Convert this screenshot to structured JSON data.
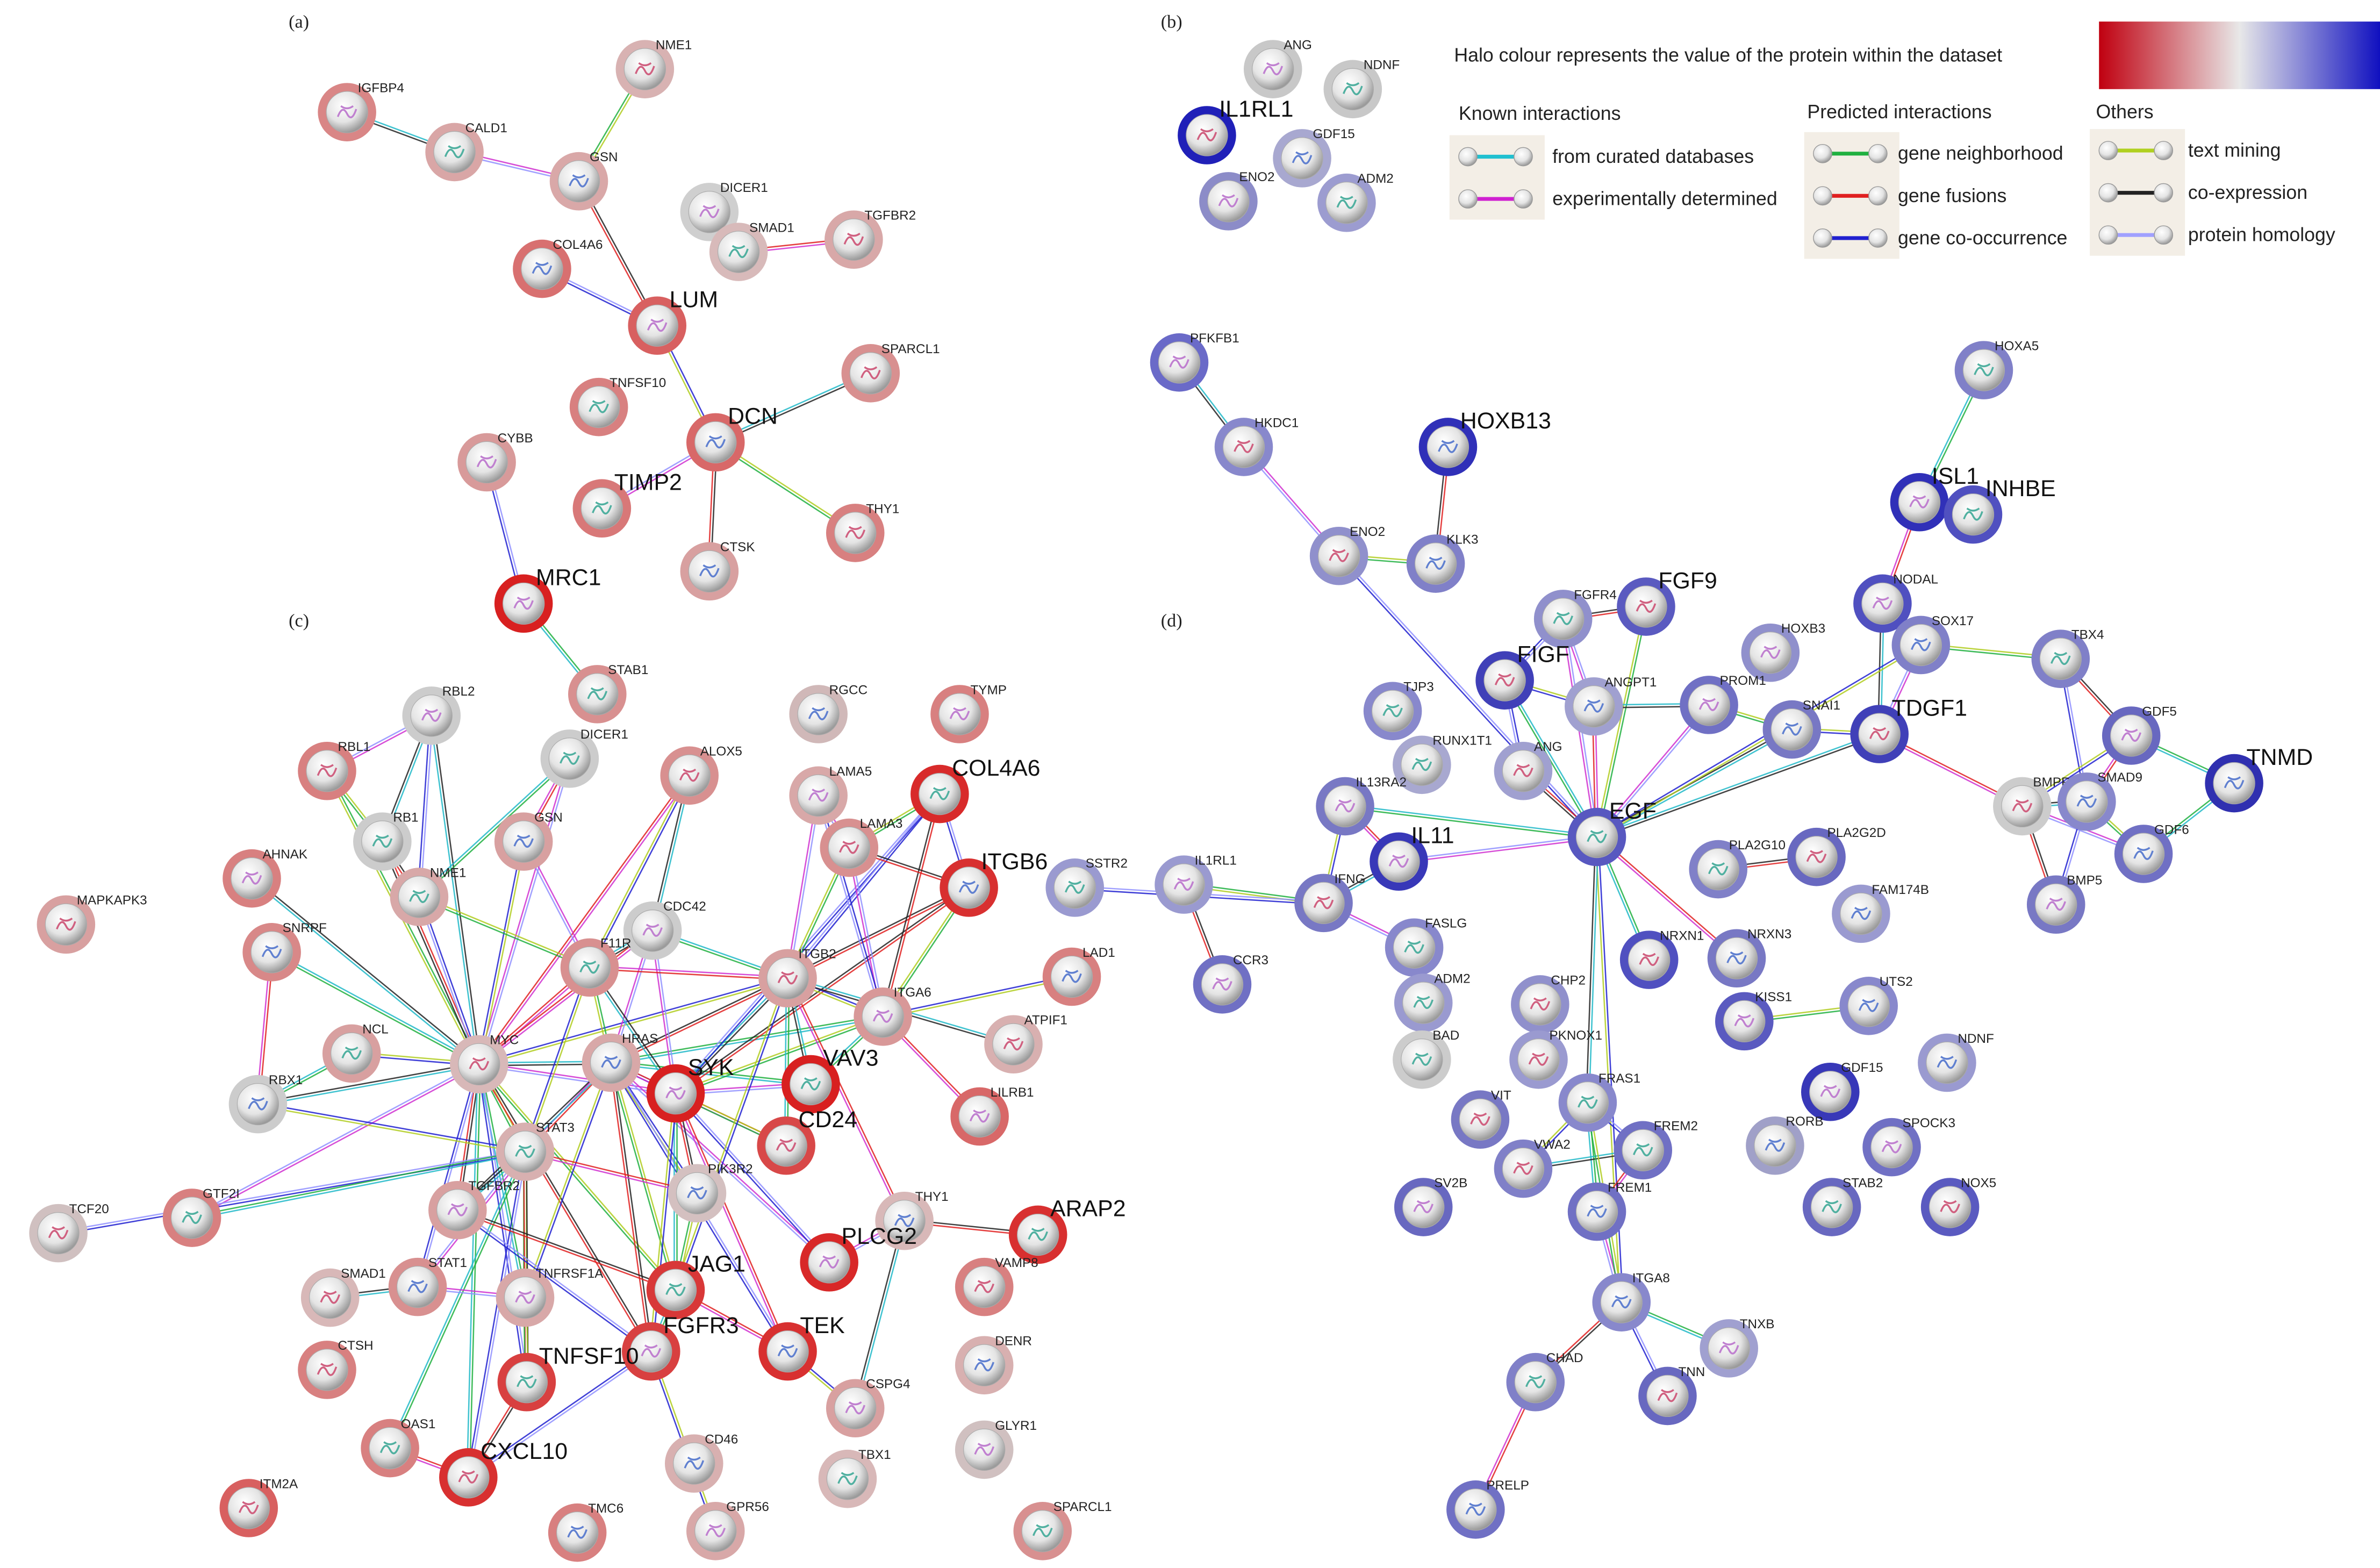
{
  "panels": [
    {
      "label": "(a)",
      "nodes": [
        {
          "label": "IGFBP4",
          "halo": "#d98686"
        },
        {
          "label": "CALD1",
          "halo": "#d9a6a6"
        },
        {
          "label": "NME1",
          "halo": "#d8b2b2"
        },
        {
          "label": "GSN",
          "halo": "#d9a8a8"
        },
        {
          "label": "DICER1",
          "halo": "#cfcfcf"
        },
        {
          "label": "SMAD1",
          "halo": "#d8baba"
        },
        {
          "label": "TGFBR2",
          "halo": "#d8a8a8"
        },
        {
          "label": "COL4A6",
          "halo": "#d87070"
        },
        {
          "label": "LUM",
          "halo": "#d86060"
        },
        {
          "label": "TNFSF10",
          "halo": "#d88080"
        },
        {
          "label": "SPARCL1",
          "halo": "#d89090"
        },
        {
          "label": "DCN",
          "halo": "#d86868"
        },
        {
          "label": "CYBB",
          "halo": "#d89a9a"
        },
        {
          "label": "TIMP2",
          "halo": "#d87878"
        },
        {
          "label": "THY1",
          "halo": "#d88080"
        },
        {
          "label": "CTSK",
          "halo": "#d8a0a0"
        },
        {
          "label": "MRC1",
          "halo": "#d82020"
        },
        {
          "label": "STAB1",
          "halo": "#d89090"
        }
      ]
    },
    {
      "label": "(b)",
      "nodes": [
        {
          "label": "ANG",
          "halo": "#c8c8c8"
        },
        {
          "label": "NDNF",
          "halo": "#c8c8c8"
        },
        {
          "label": "IL1RL1",
          "halo": "#2020b8"
        },
        {
          "label": "GDF15",
          "halo": "#a8a8d0"
        },
        {
          "label": "ENO2",
          "halo": "#8c8cc8"
        },
        {
          "label": "ADM2",
          "halo": "#9c9cd0"
        }
      ]
    },
    {
      "label": "(c)",
      "nodes": [
        {
          "label": "RBL2",
          "halo": "#cccccc"
        },
        {
          "label": "DICER1",
          "halo": "#cccccc"
        },
        {
          "label": "ALOX5",
          "halo": "#d89090"
        },
        {
          "label": "RGCC",
          "halo": "#d0b8b8"
        },
        {
          "label": "TYMP",
          "halo": "#d88080"
        },
        {
          "label": "COL4A6",
          "halo": "#d82a2a"
        },
        {
          "label": "RBL1",
          "halo": "#d88080"
        },
        {
          "label": "GSN",
          "halo": "#d8a0a0"
        },
        {
          "label": "LAMA5",
          "halo": "#d8a8a8"
        },
        {
          "label": "RB1",
          "halo": "#cccccc"
        },
        {
          "label": "LAMA3",
          "halo": "#d89090"
        },
        {
          "label": "ITGB6",
          "halo": "#d83030"
        },
        {
          "label": "AHNAK",
          "halo": "#d88080"
        },
        {
          "label": "NME1",
          "halo": "#d8a8a8"
        },
        {
          "label": "MAPKAPK3",
          "halo": "#d8a0a0"
        },
        {
          "label": "SNRPF",
          "halo": "#d88888"
        },
        {
          "label": "CDC42",
          "halo": "#cccccc"
        },
        {
          "label": "F11R",
          "halo": "#d89090"
        },
        {
          "label": "ITGB2",
          "halo": "#d8a0a0"
        },
        {
          "label": "LAD1",
          "halo": "#d88080"
        },
        {
          "label": "ITGA6",
          "halo": "#d89898"
        },
        {
          "label": "NCL",
          "halo": "#d8a0a0"
        },
        {
          "label": "MYC",
          "halo": "#d8b8b8"
        },
        {
          "label": "HRAS",
          "halo": "#d8a8a8"
        },
        {
          "label": "SYK",
          "halo": "#d82020"
        },
        {
          "label": "VAV3",
          "halo": "#d82020"
        },
        {
          "label": "ATPIF1",
          "halo": "#d8b0b0"
        },
        {
          "label": "RBX1",
          "halo": "#cccccc"
        },
        {
          "label": "LILRB1",
          "halo": "#d86868"
        },
        {
          "label": "STAT3",
          "halo": "#d8b0b0"
        },
        {
          "label": "CD24",
          "halo": "#d84848"
        },
        {
          "label": "PIK3R2",
          "halo": "#d4c0c0"
        },
        {
          "label": "TGFBR2",
          "halo": "#d8a0a0"
        },
        {
          "label": "GTF2I",
          "halo": "#d88080"
        },
        {
          "label": "TCF20",
          "halo": "#d0c0c0"
        },
        {
          "label": "THY1",
          "halo": "#d8b8b8"
        },
        {
          "label": "PLCG2",
          "halo": "#d82828"
        },
        {
          "label": "ARAP2",
          "halo": "#d83030"
        },
        {
          "label": "SMAD1",
          "halo": "#d8b8b8"
        },
        {
          "label": "STAT1",
          "halo": "#d89090"
        },
        {
          "label": "TNFRSF1A",
          "halo": "#d8a8a8"
        },
        {
          "label": "JAG1",
          "halo": "#d83838"
        },
        {
          "label": "VAMP8",
          "halo": "#d88080"
        },
        {
          "label": "TEK",
          "halo": "#d83030"
        },
        {
          "label": "FGFR3",
          "halo": "#d84040"
        },
        {
          "label": "TNFSF10",
          "halo": "#d84040"
        },
        {
          "label": "CTSH",
          "halo": "#d88080"
        },
        {
          "label": "DENR",
          "halo": "#d8b0b0"
        },
        {
          "label": "CSPG4",
          "halo": "#d8a0a0"
        },
        {
          "label": "OAS1",
          "halo": "#d88080"
        },
        {
          "label": "CXCL10",
          "halo": "#d83030"
        },
        {
          "label": "CD46",
          "halo": "#d8b0b0"
        },
        {
          "label": "GLYR1",
          "halo": "#d0c0c0"
        },
        {
          "label": "TBX1",
          "halo": "#d8b8b8"
        },
        {
          "label": "ITM2A",
          "halo": "#d86060"
        },
        {
          "label": "TMC6",
          "halo": "#d88080"
        },
        {
          "label": "GPR56",
          "halo": "#d8a8a8"
        },
        {
          "label": "SPARCL1",
          "halo": "#d89090"
        }
      ]
    },
    {
      "label": "(d)",
      "nodes": [
        {
          "label": "PFKFB1",
          "halo": "#6a6ac8"
        },
        {
          "label": "HOXA5",
          "halo": "#8080c8"
        },
        {
          "label": "HKDC1",
          "halo": "#8888cc"
        },
        {
          "label": "HOXB13",
          "halo": "#3030b8"
        },
        {
          "label": "ISL1",
          "halo": "#3030b8"
        },
        {
          "label": "INHBE",
          "halo": "#5050c0"
        },
        {
          "label": "ENO2",
          "halo": "#9090cc"
        },
        {
          "label": "KLK3",
          "halo": "#8080c8"
        },
        {
          "label": "NODAL",
          "halo": "#5050c0"
        },
        {
          "label": "FGFR4",
          "halo": "#9090cc"
        },
        {
          "label": "FGF9",
          "halo": "#5a5ac0"
        },
        {
          "label": "SOX17",
          "halo": "#8080c8"
        },
        {
          "label": "HOXB3",
          "halo": "#9090cc"
        },
        {
          "label": "TBX4",
          "halo": "#8080c8"
        },
        {
          "label": "FIGF",
          "halo": "#4040b8"
        },
        {
          "label": "ANGPT1",
          "halo": "#a0a0d0"
        },
        {
          "label": "PROM1",
          "halo": "#7070c4"
        },
        {
          "label": "TJP3",
          "halo": "#8888cc"
        },
        {
          "label": "TDGF1",
          "halo": "#4040b8"
        },
        {
          "label": "SNAI1",
          "halo": "#7878c4"
        },
        {
          "label": "GDF5",
          "halo": "#6868c0"
        },
        {
          "label": "RUNX1T1",
          "halo": "#a8a8d0"
        },
        {
          "label": "ANG",
          "halo": "#a0a0d0"
        },
        {
          "label": "TNMD",
          "halo": "#3030b0"
        },
        {
          "label": "IL13RA2",
          "halo": "#7878c4"
        },
        {
          "label": "EGF",
          "halo": "#5858c0"
        },
        {
          "label": "BMPR",
          "halo": "#cccccc"
        },
        {
          "label": "SMAD9",
          "halo": "#8888cc"
        },
        {
          "label": "IL11",
          "halo": "#3838b8"
        },
        {
          "label": "PLA2G10",
          "halo": "#8080c8"
        },
        {
          "label": "PLA2G2D",
          "halo": "#6868c0"
        },
        {
          "label": "GDF6",
          "halo": "#7070c4"
        },
        {
          "label": "IL1RL1",
          "halo": "#9a9ad0"
        },
        {
          "label": "SSTR2",
          "halo": "#9a9ad0"
        },
        {
          "label": "IFNG",
          "halo": "#7878c4"
        },
        {
          "label": "FAM174B",
          "halo": "#9a9ad0"
        },
        {
          "label": "BMP5",
          "halo": "#7878c4"
        },
        {
          "label": "FASLG",
          "halo": "#8888cc"
        },
        {
          "label": "NRXN1",
          "halo": "#5050c0"
        },
        {
          "label": "NRXN3",
          "halo": "#7878c4"
        },
        {
          "label": "CCR3",
          "halo": "#7070c4"
        },
        {
          "label": "ADM2",
          "halo": "#9a9ad0"
        },
        {
          "label": "CHP2",
          "halo": "#9090cc"
        },
        {
          "label": "UTS2",
          "halo": "#8888cc"
        },
        {
          "label": "KISS1",
          "halo": "#5a5ac0"
        },
        {
          "label": "BAD",
          "halo": "#cccccc"
        },
        {
          "label": "PKNOX1",
          "halo": "#9a9ad0"
        },
        {
          "label": "NDNF",
          "halo": "#9a9ad0"
        },
        {
          "label": "GDF15",
          "halo": "#3838b8"
        },
        {
          "label": "FRAS1",
          "halo": "#8888cc"
        },
        {
          "label": "VIT",
          "halo": "#7878c4"
        },
        {
          "label": "RORB",
          "halo": "#a0a0c8"
        },
        {
          "label": "SPOCK3",
          "halo": "#7070c4"
        },
        {
          "label": "FREM2",
          "halo": "#7070c4"
        },
        {
          "label": "VWA2",
          "halo": "#8080c8"
        },
        {
          "label": "FREM1",
          "halo": "#7070c4"
        },
        {
          "label": "SV2B",
          "halo": "#6868c0"
        },
        {
          "label": "STAB2",
          "halo": "#6868c0"
        },
        {
          "label": "NOX5",
          "halo": "#5a5ac0"
        },
        {
          "label": "ITGA8",
          "halo": "#8888cc"
        },
        {
          "label": "TNXB",
          "halo": "#a0a0d0"
        },
        {
          "label": "CHAD",
          "halo": "#8080c8"
        },
        {
          "label": "TNN",
          "halo": "#6868c0"
        },
        {
          "label": "PRELP",
          "halo": "#7070c4"
        }
      ]
    }
  ],
  "legend": {
    "title": "Halo colour represents the value of the protein within the dataset",
    "gradient": [
      "#c00010",
      "#e8e8e8",
      "#1010c0"
    ],
    "groups": [
      {
        "title": "Known interactions",
        "items": [
          {
            "label": "from curated databases",
            "color": "#20c0d0"
          },
          {
            "label": "experimentally determined",
            "color": "#d020d0"
          }
        ]
      },
      {
        "title": "Predicted interactions",
        "items": [
          {
            "label": "gene neighborhood",
            "color": "#20b040"
          },
          {
            "label": "gene fusions",
            "color": "#e02020"
          },
          {
            "label": "gene co-occurrence",
            "color": "#2020d0"
          }
        ]
      },
      {
        "title": "Others",
        "items": [
          {
            "label": "text mining",
            "color": "#b0d020"
          },
          {
            "label": "co-expression",
            "color": "#222222"
          },
          {
            "label": "protein homology",
            "color": "#a0a0ff"
          }
        ]
      }
    ]
  }
}
